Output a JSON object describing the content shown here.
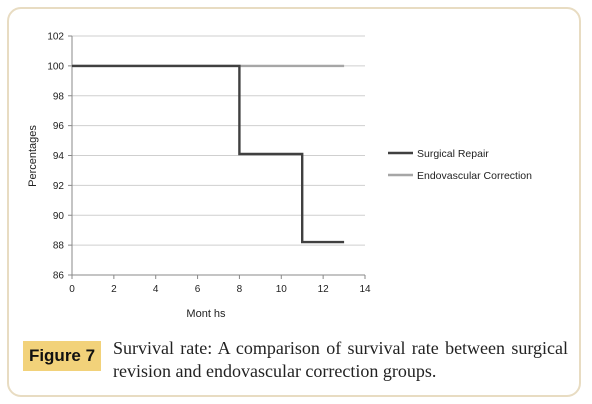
{
  "chart_data": {
    "type": "line",
    "xlabel": "Mont hs",
    "ylabel": "Percentages",
    "xlim": [
      0,
      14
    ],
    "ylim": [
      86,
      102
    ],
    "xticks": [
      0,
      2,
      4,
      6,
      8,
      10,
      12,
      14
    ],
    "yticks": [
      86,
      88,
      90,
      92,
      94,
      96,
      98,
      100,
      102
    ],
    "grid": "horizontal",
    "legend_position": "right",
    "series": [
      {
        "name": "Surgical Repair",
        "color": "#404040",
        "step": true,
        "points": [
          [
            0,
            100
          ],
          [
            8,
            100
          ],
          [
            8,
            94.1
          ],
          [
            11,
            94.1
          ],
          [
            11,
            88.2
          ],
          [
            13,
            88.2
          ]
        ]
      },
      {
        "name": "Endovascular Correction",
        "color": "#a6a6a6",
        "step": true,
        "points": [
          [
            0,
            100
          ],
          [
            13,
            100
          ]
        ]
      }
    ]
  },
  "figure": {
    "label": "Figure 7",
    "caption": "Survival rate: A comparison of survival rate between surgical revision and endovascular correction groups."
  }
}
